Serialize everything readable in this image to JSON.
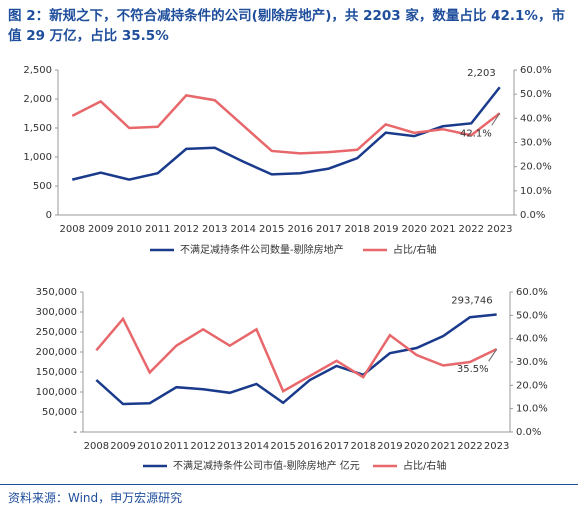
{
  "title": "图 2：新规之下，不符合减持条件的公司(剔除房地产)，共 2203 家，数量占比 42.1%，市值 29 万亿，占比 35.5%",
  "source": "资料来源：Wind，申万宏源研究",
  "chart_data": [
    {
      "type": "line",
      "categories": [
        "2008",
        "2009",
        "2010",
        "2011",
        "2012",
        "2013",
        "2014",
        "2015",
        "2016",
        "2017",
        "2018",
        "2019",
        "2020",
        "2021",
        "2022",
        "2023"
      ],
      "ylim": [
        0,
        2500
      ],
      "yticks": [
        0,
        500,
        {
          "value": 1000,
          "label": "1,000"
        },
        {
          "value": 1500,
          "label": "1,500"
        },
        {
          "value": 2000,
          "label": "2,000"
        },
        {
          "value": 2500,
          "label": "2,500"
        }
      ],
      "y2lim": [
        0,
        60
      ],
      "y2ticks": [
        {
          "value": 0,
          "label": "0.0%"
        },
        {
          "value": 10,
          "label": "10.0%"
        },
        {
          "value": 20,
          "label": "20.0%"
        },
        {
          "value": 30,
          "label": "30.0%"
        },
        {
          "value": 40,
          "label": "40.0%"
        },
        {
          "value": 50,
          "label": "50.0%"
        },
        {
          "value": 60,
          "label": "60.0%"
        }
      ],
      "series": [
        {
          "name": "不满足减持条件公司数量-剔除房地产",
          "color": "#1a3a8c",
          "values": [
            610,
            730,
            610,
            720,
            1140,
            1160,
            920,
            700,
            720,
            800,
            980,
            1420,
            1360,
            1530,
            1580,
            2203
          ],
          "value_labels": [
            null,
            null,
            null,
            null,
            null,
            null,
            null,
            null,
            null,
            null,
            null,
            null,
            null,
            null,
            null,
            "2,203"
          ]
        },
        {
          "name": "占比/右轴",
          "color": "#e8676b",
          "axis": "y2",
          "values": [
            41,
            47,
            36,
            36.5,
            49.5,
            47.5,
            37,
            26.5,
            25.5,
            26,
            27,
            37.5,
            34,
            35.5,
            33,
            42.1
          ],
          "value_labels": [
            null,
            null,
            null,
            null,
            null,
            null,
            null,
            null,
            null,
            null,
            null,
            null,
            null,
            null,
            null,
            "42.1%"
          ]
        }
      ]
    },
    {
      "type": "line",
      "categories": [
        "2008",
        "2009",
        "2010",
        "2011",
        "2012",
        "2013",
        "2014",
        "2015",
        "2016",
        "2017",
        "2018",
        "2019",
        "2020",
        "2021",
        "2022",
        "2023"
      ],
      "ylim": [
        0,
        350000
      ],
      "yticks": [
        {
          "value": 0,
          "label": "-"
        },
        {
          "value": 50000,
          "label": "50,000"
        },
        {
          "value": 100000,
          "label": "100,000"
        },
        {
          "value": 150000,
          "label": "150,000"
        },
        {
          "value": 200000,
          "label": "200,000"
        },
        {
          "value": 250000,
          "label": "250,000"
        },
        {
          "value": 300000,
          "label": "300,000"
        },
        {
          "value": 350000,
          "label": "350,000"
        }
      ],
      "y2lim": [
        0,
        60
      ],
      "y2ticks": [
        {
          "value": 0,
          "label": "0.0%"
        },
        {
          "value": 10,
          "label": "10.0%"
        },
        {
          "value": 20,
          "label": "20.0%"
        },
        {
          "value": 30,
          "label": "30.0%"
        },
        {
          "value": 40,
          "label": "40.0%"
        },
        {
          "value": 50,
          "label": "50.0%"
        },
        {
          "value": 60,
          "label": "60.0%"
        }
      ],
      "series": [
        {
          "name": "不满足减持条件公司市值-剔除房地产 亿元",
          "color": "#1a3a8c",
          "values": [
            130000,
            70000,
            72000,
            112000,
            107000,
            98000,
            120000,
            73000,
            130000,
            165000,
            143000,
            197000,
            210000,
            240000,
            287000,
            293746
          ],
          "value_labels": [
            null,
            null,
            null,
            null,
            null,
            null,
            null,
            null,
            null,
            null,
            null,
            null,
            null,
            null,
            null,
            "293,746"
          ]
        },
        {
          "name": "占比/右轴",
          "color": "#e8676b",
          "axis": "y2",
          "values": [
            35,
            48.5,
            25.5,
            37,
            44,
            37,
            44,
            17.5,
            24,
            30.5,
            23.5,
            41.5,
            33,
            28.5,
            30,
            35.5
          ],
          "value_labels": [
            null,
            null,
            null,
            null,
            null,
            null,
            null,
            null,
            null,
            null,
            null,
            null,
            null,
            null,
            null,
            "35.5%"
          ]
        }
      ]
    }
  ]
}
